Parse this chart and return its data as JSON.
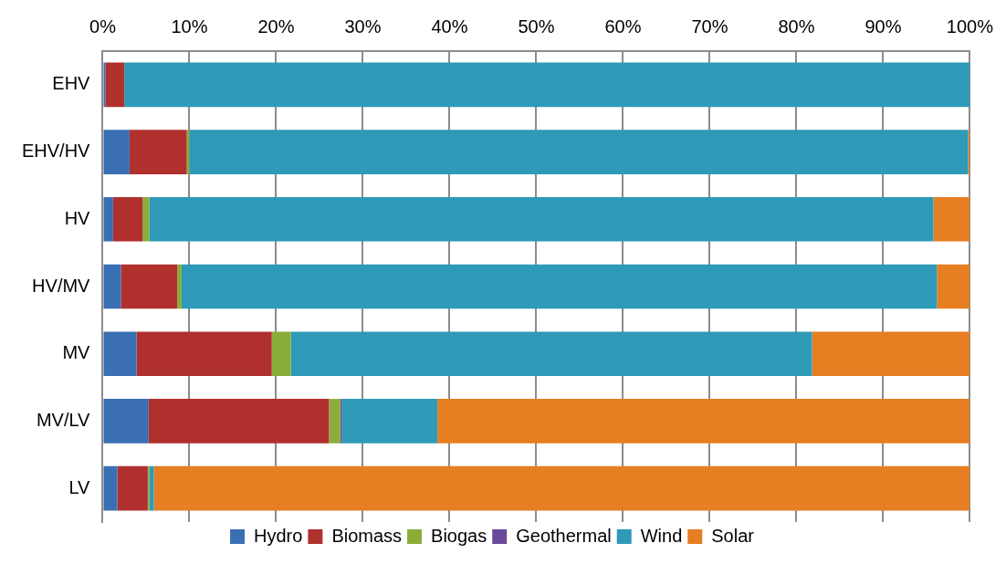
{
  "chart_data": {
    "type": "bar",
    "orientation": "horizontal",
    "stacked": true,
    "categories": [
      "EHV",
      "EHV/HV",
      "HV",
      "HV/MV",
      "MV",
      "MV/LV",
      "LV"
    ],
    "series": [
      {
        "name": "Hydro",
        "color": "#3a6fb4",
        "values": [
          0.3,
          3.1,
          1.2,
          2.1,
          3.9,
          5.3,
          1.7
        ]
      },
      {
        "name": "Biomass",
        "color": "#b0302e",
        "values": [
          2.2,
          6.6,
          3.4,
          6.5,
          15.6,
          20.8,
          3.5
        ]
      },
      {
        "name": "Biogas",
        "color": "#8aad3a",
        "values": [
          0,
          0.3,
          0.8,
          0.5,
          2.2,
          1.3,
          0.2
        ]
      },
      {
        "name": "Geothermal",
        "color": "#6a4a9a",
        "values": [
          0,
          0,
          0,
          0,
          0,
          0.2,
          0
        ]
      },
      {
        "name": "Wind",
        "color": "#2e9ab8",
        "values": [
          97.5,
          89.8,
          90.4,
          87.1,
          60.1,
          11.0,
          0.5
        ]
      },
      {
        "name": "Solar",
        "color": "#e67e22",
        "values": [
          0,
          0.2,
          4.2,
          3.8,
          18.2,
          61.4,
          94.1
        ]
      }
    ],
    "xlim": [
      0,
      100
    ],
    "xticks": [
      {
        "value": 0,
        "label": "0%"
      },
      {
        "value": 10,
        "label": "10%"
      },
      {
        "value": 20,
        "label": "20%"
      },
      {
        "value": 30,
        "label": "30%"
      },
      {
        "value": 40,
        "label": "40%"
      },
      {
        "value": 50,
        "label": "50%"
      },
      {
        "value": 60,
        "label": "60%"
      },
      {
        "value": 70,
        "label": "70%"
      },
      {
        "value": 80,
        "label": "80%"
      },
      {
        "value": 90,
        "label": "90%"
      },
      {
        "value": 100,
        "label": "100%"
      }
    ],
    "grid": "x",
    "legend": "bottom"
  }
}
